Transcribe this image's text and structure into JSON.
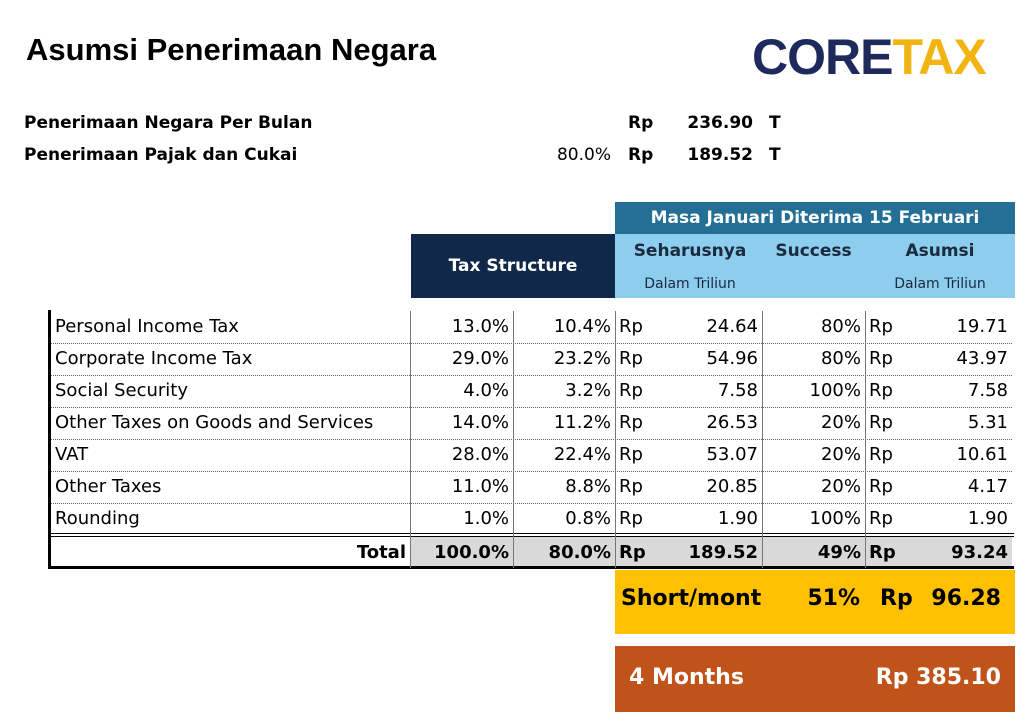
{
  "header": {
    "title": "Asumsi Penerimaan Negara",
    "logo": {
      "part1": "CORE",
      "part2": "TAX"
    }
  },
  "summary": [
    {
      "label": "Penerimaan Negara Per Bulan",
      "percent": null,
      "currency": "Rp",
      "amount": "236.90",
      "unit": "T"
    },
    {
      "label": "Penerimaan Pajak dan Cukai",
      "percent": "80.0%",
      "currency": "Rp",
      "amount": "189.52",
      "unit": "T"
    }
  ],
  "table": {
    "group_header": "Masa Januari Diterima 15 Februari",
    "tax_structure_header": "Tax Structure",
    "columns": [
      {
        "label": "Seharusnya",
        "sublabel": "Dalam Triliun"
      },
      {
        "label": "Success",
        "sublabel": null
      },
      {
        "label": "Asumsi",
        "sublabel": "Dalam Triliun"
      }
    ],
    "rows": [
      [
        "Personal Income Tax",
        "13.0%",
        "10.4%",
        "Rp",
        "24.64",
        "80%",
        "Rp",
        "19.71"
      ],
      [
        "Corporate Income Tax",
        "29.0%",
        "23.2%",
        "Rp",
        "54.96",
        "80%",
        "Rp",
        "43.97"
      ],
      [
        "Social Security",
        "4.0%",
        "3.2%",
        "Rp",
        "7.58",
        "100%",
        "Rp",
        "7.58"
      ],
      [
        "Other Taxes on Goods and Services",
        "14.0%",
        "11.2%",
        "Rp",
        "26.53",
        "20%",
        "Rp",
        "5.31"
      ],
      [
        "VAT",
        "28.0%",
        "22.4%",
        "Rp",
        "53.07",
        "20%",
        "Rp",
        "10.61"
      ],
      [
        "Other Taxes",
        "11.0%",
        "8.8%",
        "Rp",
        "20.85",
        "20%",
        "Rp",
        "4.17"
      ],
      [
        "Rounding",
        "1.0%",
        "0.8%",
        "Rp",
        "1.90",
        "100%",
        "Rp",
        "1.90"
      ]
    ],
    "total": [
      "Total",
      "100.0%",
      "80.0%",
      "Rp",
      "189.52",
      "49%",
      "Rp",
      "93.24"
    ]
  },
  "short_month": {
    "label": "Short/month",
    "percent": "51%",
    "currency": "Rp",
    "amount": "96.28"
  },
  "four_months": {
    "label": "4 Months",
    "amount": "Rp 385.10"
  }
}
